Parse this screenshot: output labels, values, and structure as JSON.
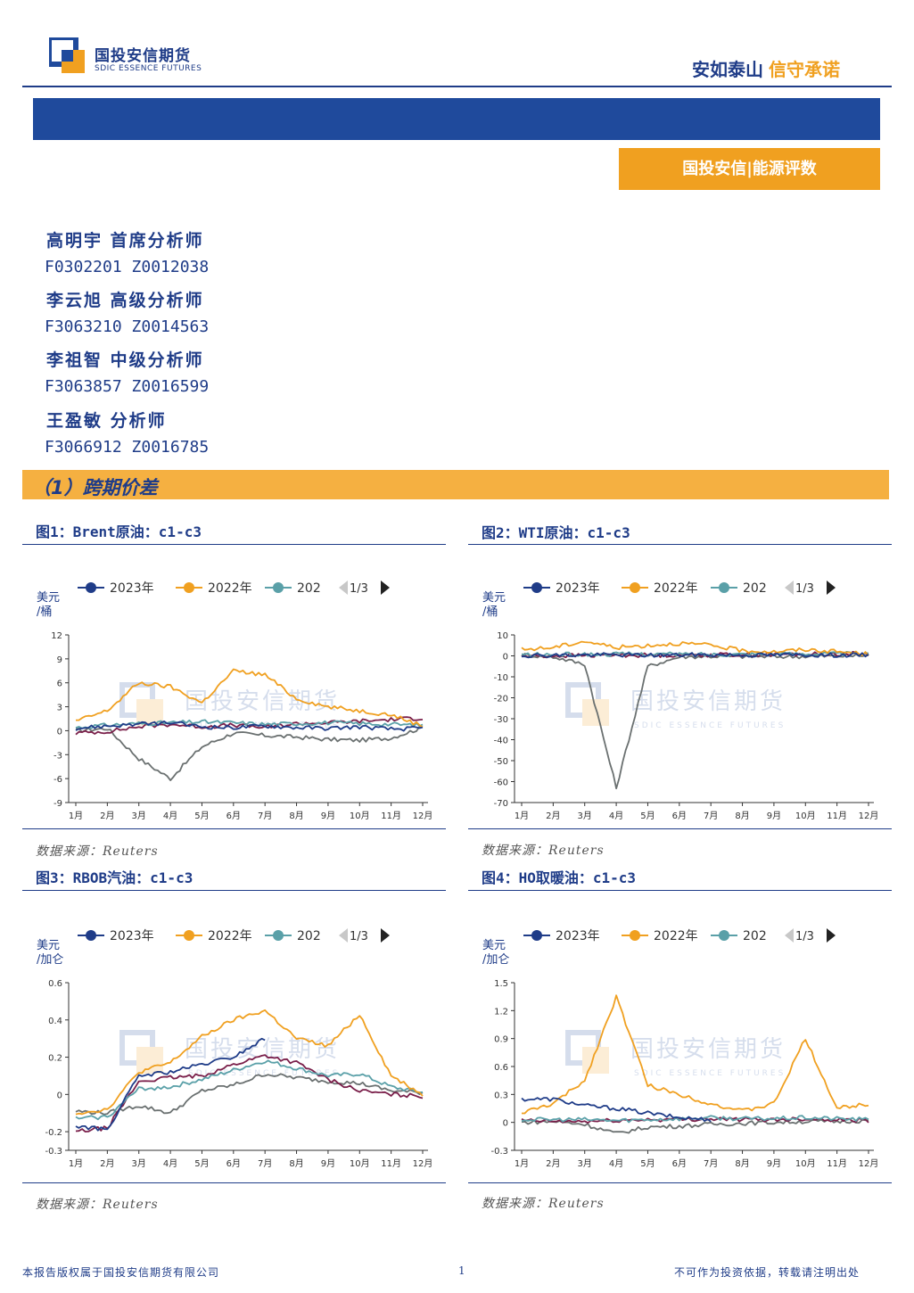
{
  "header": {
    "logo_cn": "国投安信期货",
    "logo_en": "SDIC ESSENCE FUTURES",
    "slogan_part1": "安如泰山",
    "slogan_part2": "信守承诺",
    "colors": {
      "brand_blue": "#1f4a9c",
      "accent_orange": "#f0a020"
    }
  },
  "report_tag": "国投安信|能源评数",
  "analysts": [
    {
      "name_role": "高明宇 首席分析师",
      "cert": "F0302201 Z0012038"
    },
    {
      "name_role": "李云旭 高级分析师",
      "cert": "F3063210 Z0014563"
    },
    {
      "name_role": "李祖智 中级分析师",
      "cert": "F3063857 Z0016599"
    },
    {
      "name_role": "王盈敏 分析师",
      "cert": "F3066912 Z0016785"
    }
  ],
  "section_title": "（1）跨期价差",
  "watermark_cn": "国投安信期货",
  "watermark_en": "SDIC ESSENCE FUTURES",
  "legend": {
    "labels": [
      "2023年",
      "2022年",
      "202"
    ],
    "page": "1/3",
    "colors": [
      "#1f3c88",
      "#f0a020",
      "#5aa0a8"
    ]
  },
  "figures": [
    {
      "title": "图1：Brent原油：c1-c3",
      "source": "数据来源：Reuters"
    },
    {
      "title": "图2：WTI原油：c1-c3",
      "source": "数据来源：Reuters"
    },
    {
      "title": "图3：RBOB汽油：c1-c3",
      "source": "数据来源：Reuters"
    },
    {
      "title": "图4：HO取暖油：c1-c3",
      "source": "数据来源：Reuters"
    }
  ],
  "chart_data": [
    {
      "type": "line",
      "ylabel": "美元/桶",
      "ylim": [
        -9,
        12
      ],
      "yticks": [
        12,
        9,
        6,
        3,
        0,
        -3,
        -6,
        -9
      ],
      "categories": [
        "1月",
        "2月",
        "3月",
        "4月",
        "5月",
        "6月",
        "7月",
        "8月",
        "9月",
        "10月",
        "11月",
        "12月"
      ],
      "series": [
        {
          "name": "2023年",
          "color": "#1f3c88",
          "values": [
            0.3,
            0.6,
            0.8,
            1.0,
            0.5,
            0.4,
            0.6,
            0.4,
            0.3,
            0.5,
            0.2,
            0.3
          ]
        },
        {
          "name": "2022年",
          "color": "#f0a020",
          "values": [
            1.2,
            2.5,
            6.0,
            5.5,
            3.5,
            7.5,
            7.0,
            4.0,
            3.0,
            2.5,
            2.0,
            0.6
          ]
        },
        {
          "name": "202",
          "color": "#5aa0a8",
          "values": [
            0.4,
            0.7,
            0.9,
            1.0,
            1.1,
            1.0,
            0.8,
            0.9,
            1.0,
            0.9,
            0.8,
            0.7
          ]
        },
        {
          "color": "#7a1f4a",
          "values": [
            -0.3,
            -0.1,
            0.5,
            0.8,
            0.5,
            0.7,
            0.4,
            0.9,
            1.0,
            1.2,
            1.4,
            1.6
          ]
        },
        {
          "color": "#6a7070",
          "values": [
            0.0,
            0.3,
            -3.5,
            -6.0,
            -2.0,
            -0.3,
            -0.6,
            -0.8,
            -1.1,
            -1.2,
            -0.9,
            0.4
          ]
        }
      ]
    },
    {
      "type": "line",
      "ylabel": "美元/桶",
      "ylim": [
        -70,
        10
      ],
      "yticks": [
        10,
        0,
        -10,
        -20,
        -30,
        -40,
        -50,
        -60,
        -70
      ],
      "categories": [
        "1月",
        "2月",
        "3月",
        "4月",
        "5月",
        "6月",
        "7月",
        "8月",
        "9月",
        "10月",
        "11月",
        "12月"
      ],
      "series": [
        {
          "name": "2023年",
          "color": "#1f3c88",
          "values": [
            0.2,
            0.3,
            0.4,
            0.5,
            0.3,
            0.4,
            0.5,
            0.4,
            0.4,
            0.5,
            0.3,
            0.4
          ]
        },
        {
          "name": "2022年",
          "color": "#f0a020",
          "values": [
            3.0,
            4.0,
            7.0,
            4.0,
            5.0,
            6.0,
            5.0,
            2.5,
            2.0,
            3.0,
            2.0,
            0.8
          ]
        },
        {
          "name": "202",
          "color": "#5aa0a8",
          "values": [
            0.5,
            0.6,
            0.7,
            0.8,
            0.9,
            0.8,
            0.7,
            0.9,
            1.0,
            1.1,
            1.0,
            0.9
          ]
        },
        {
          "color": "#7a1f4a",
          "values": [
            -0.2,
            0.0,
            0.2,
            0.4,
            0.3,
            0.4,
            0.5,
            0.6,
            0.7,
            0.8,
            0.9,
            1.0
          ]
        },
        {
          "color": "#6a7070",
          "values": [
            0.5,
            -0.5,
            -4.0,
            -63.0,
            -5.0,
            -0.5,
            -0.2,
            -0.3,
            -0.4,
            -0.2,
            -0.1,
            0.2
          ]
        }
      ]
    },
    {
      "type": "line",
      "ylabel": "美元/加仑",
      "ylim": [
        -0.3,
        0.6
      ],
      "yticks": [
        0.6,
        0.4,
        0.2,
        0,
        -0.2,
        -0.3
      ],
      "categories": [
        "1月",
        "2月",
        "3月",
        "4月",
        "5月",
        "6月",
        "7月",
        "8月",
        "9月",
        "10月",
        "11月",
        "12月"
      ],
      "series": [
        {
          "name": "2023年",
          "color": "#1f3c88",
          "values": [
            -0.17,
            -0.19,
            0.1,
            0.12,
            0.16,
            0.2,
            0.3,
            null,
            null,
            null,
            null,
            null
          ]
        },
        {
          "name": "2022年",
          "color": "#f0a020",
          "values": [
            -0.1,
            -0.08,
            0.12,
            0.17,
            0.31,
            0.4,
            0.45,
            0.3,
            0.26,
            0.43,
            0.1,
            0.0
          ]
        },
        {
          "name": "202",
          "color": "#5aa0a8",
          "values": [
            -0.13,
            -0.12,
            0.03,
            0.04,
            0.08,
            0.13,
            0.18,
            0.14,
            0.1,
            0.11,
            0.04,
            0.01
          ]
        },
        {
          "color": "#7a1f4a",
          "values": [
            -0.2,
            -0.18,
            0.07,
            0.09,
            0.1,
            0.16,
            0.21,
            0.17,
            0.08,
            0.02,
            0.0,
            -0.01
          ]
        },
        {
          "color": "#6a7070",
          "values": [
            -0.09,
            -0.1,
            -0.06,
            -0.1,
            0.02,
            0.05,
            0.11,
            0.09,
            0.07,
            0.06,
            0.02,
            0.01
          ]
        }
      ]
    },
    {
      "type": "line",
      "ylabel": "美元/加仑",
      "ylim": [
        -0.3,
        1.5
      ],
      "yticks": [
        1.5,
        1.2,
        0.9,
        0.6,
        0.3,
        0,
        -0.3
      ],
      "categories": [
        "1月",
        "2月",
        "3月",
        "4月",
        "5月",
        "6月",
        "7月",
        "8月",
        "9月",
        "10月",
        "11月",
        "12月"
      ],
      "series": [
        {
          "name": "2023年",
          "color": "#1f3c88",
          "values": [
            0.25,
            0.25,
            0.18,
            0.15,
            0.1,
            0.05,
            0.03,
            null,
            null,
            null,
            null,
            null
          ]
        },
        {
          "name": "2022年",
          "color": "#f0a020",
          "values": [
            0.1,
            0.2,
            0.45,
            1.35,
            0.4,
            0.3,
            0.2,
            0.12,
            0.2,
            0.9,
            0.15,
            0.2
          ]
        },
        {
          "name": "202",
          "color": "#5aa0a8",
          "values": [
            0.03,
            0.03,
            0.03,
            0.02,
            0.03,
            0.04,
            0.05,
            0.04,
            0.04,
            0.05,
            0.04,
            0.03
          ]
        },
        {
          "color": "#7a1f4a",
          "values": [
            0.02,
            0.01,
            0.01,
            0.02,
            0.03,
            0.03,
            0.04,
            0.03,
            0.03,
            0.04,
            0.03,
            0.02
          ]
        },
        {
          "color": "#6a7070",
          "values": [
            0.0,
            0.01,
            -0.02,
            -0.12,
            -0.05,
            -0.04,
            -0.02,
            -0.01,
            0.0,
            0.01,
            0.01,
            0.02
          ]
        }
      ]
    }
  ],
  "footer": {
    "left": "本报告版权属于国投安信期货有限公司",
    "page": "1",
    "right": "不可作为投资依据，转载请注明出处"
  }
}
